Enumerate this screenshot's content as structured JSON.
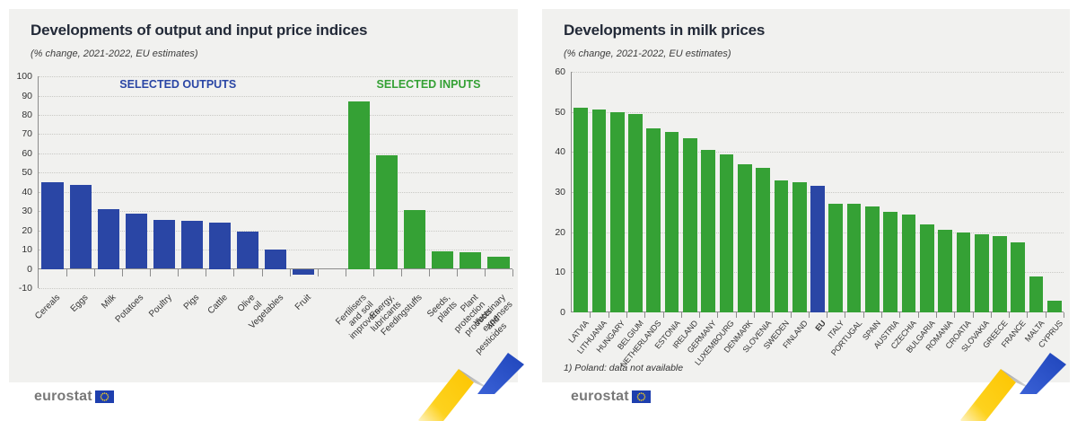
{
  "footer": {
    "logo_text": "eurostat"
  },
  "decor": {
    "ribbon_yellow": "#fdc500",
    "ribbon_gray": "#c8c8c8",
    "ribbon_blue": "#2a4fc4",
    "eu_flag_blue": "#1e3fae",
    "eu_flag_stars": "#ffd617"
  },
  "chart_data": [
    {
      "type": "bar",
      "title": "Developments of output and input price indices",
      "subtitle": "(% change, 2021-2022, EU estimates)",
      "ylim": [
        -10,
        100
      ],
      "ytick_step": 10,
      "grid": "dotted-horizontal",
      "legend_position": "none",
      "annotations": [
        {
          "text": "SELECTED OUTPUTS",
          "color": "#2a46a5"
        },
        {
          "text": "SELECTED INPUTS",
          "color": "#35a135"
        }
      ],
      "series": [
        {
          "name": "Selected outputs",
          "color": "#2a46a5",
          "categories": [
            "Cereals",
            "Eggs",
            "Milk",
            "Potatoes",
            "Poultry",
            "Pigs",
            "Cattle",
            "Olive oil",
            "Vegetables",
            "Fruit"
          ],
          "values": [
            45,
            43.5,
            31,
            28.5,
            25.5,
            25,
            24,
            19.5,
            10,
            -3
          ]
        },
        {
          "name": "Selected inputs",
          "color": "#35a135",
          "categories": [
            "Fertilisers\nand soil improvers",
            "Energy, lubricants",
            "Feedingstuffs",
            "Seeds, plants",
            "Plant protection\nproducts and pesticides",
            "Veterinary\nexpenses"
          ],
          "values": [
            87,
            59,
            30.5,
            9,
            8.5,
            6.5
          ]
        }
      ]
    },
    {
      "type": "bar",
      "title": "Developments in milk prices",
      "subtitle": "(% change, 2021-2022, EU estimates)",
      "ylim": [
        0,
        60
      ],
      "ytick_step": 10,
      "grid": "dotted-horizontal",
      "legend_position": "none",
      "footnote": "1) Poland: data not available",
      "highlight_category": "EU",
      "colors": {
        "default": "#35a135",
        "highlight": "#2a46a5"
      },
      "categories": [
        "LATVIA",
        "LITHUANIA",
        "HUNGARY",
        "BELGIUM",
        "NETHERLANDS",
        "ESTONIA",
        "IRELAND",
        "GERMANY",
        "LUXEMBOURG",
        "DENMARK",
        "SLOVENIA",
        "SWEDEN",
        "FINLAND",
        "EU",
        "ITALY",
        "PORTUGAL",
        "SPAIN",
        "AUSTRIA",
        "CZECHIA",
        "BULGARIA",
        "ROMANIA",
        "CROATIA",
        "SLOVAKIA",
        "GREECE",
        "FRANCE",
        "MALTA",
        "CYPRUS"
      ],
      "values": [
        51,
        50.5,
        50,
        49.5,
        46,
        45,
        43.5,
        40.5,
        39.5,
        37,
        36,
        33,
        32.5,
        31.5,
        27,
        27,
        26.5,
        25,
        24.5,
        22,
        20.5,
        20,
        19.5,
        19,
        17.5,
        9,
        3
      ]
    }
  ]
}
